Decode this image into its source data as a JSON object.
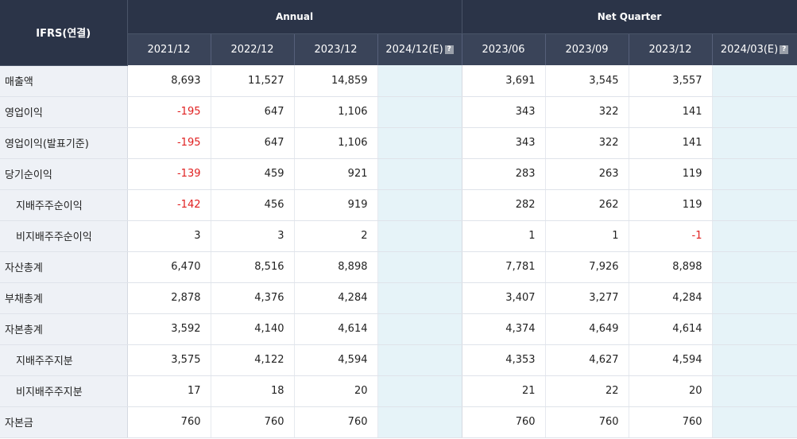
{
  "header": {
    "corner": "IFRS(연결)",
    "annual_label": "Annual",
    "quarter_label": "Net Quarter",
    "estimate_icon": "?",
    "annual_columns": [
      "2021/12",
      "2022/12",
      "2023/12",
      "2024/12(E)"
    ],
    "quarter_columns": [
      "2023/06",
      "2023/09",
      "2023/12",
      "2024/03(E)"
    ]
  },
  "rows": [
    {
      "label": "매출액",
      "indent": false,
      "annual": [
        "8,693",
        "11,527",
        "14,859",
        ""
      ],
      "quarter": [
        "3,691",
        "3,545",
        "3,557",
        ""
      ]
    },
    {
      "label": "영업이익",
      "indent": false,
      "annual": [
        "-195",
        "647",
        "1,106",
        ""
      ],
      "quarter": [
        "343",
        "322",
        "141",
        ""
      ]
    },
    {
      "label": "영업이익(발표기준)",
      "indent": false,
      "annual": [
        "-195",
        "647",
        "1,106",
        ""
      ],
      "quarter": [
        "343",
        "322",
        "141",
        ""
      ]
    },
    {
      "label": "당기순이익",
      "indent": false,
      "annual": [
        "-139",
        "459",
        "921",
        ""
      ],
      "quarter": [
        "283",
        "263",
        "119",
        ""
      ]
    },
    {
      "label": "지배주주순이익",
      "indent": true,
      "annual": [
        "-142",
        "456",
        "919",
        ""
      ],
      "quarter": [
        "282",
        "262",
        "119",
        ""
      ]
    },
    {
      "label": "비지배주주순이익",
      "indent": true,
      "annual": [
        "3",
        "3",
        "2",
        ""
      ],
      "quarter": [
        "1",
        "1",
        "-1",
        ""
      ]
    },
    {
      "label": "자산총계",
      "indent": false,
      "annual": [
        "6,470",
        "8,516",
        "8,898",
        ""
      ],
      "quarter": [
        "7,781",
        "7,926",
        "8,898",
        ""
      ]
    },
    {
      "label": "부채총계",
      "indent": false,
      "annual": [
        "2,878",
        "4,376",
        "4,284",
        ""
      ],
      "quarter": [
        "3,407",
        "3,277",
        "4,284",
        ""
      ]
    },
    {
      "label": "자본총계",
      "indent": false,
      "annual": [
        "3,592",
        "4,140",
        "4,614",
        ""
      ],
      "quarter": [
        "4,374",
        "4,649",
        "4,614",
        ""
      ]
    },
    {
      "label": "지배주주지분",
      "indent": true,
      "annual": [
        "3,575",
        "4,122",
        "4,594",
        ""
      ],
      "quarter": [
        "4,353",
        "4,627",
        "4,594",
        ""
      ]
    },
    {
      "label": "비지배주주지분",
      "indent": true,
      "annual": [
        "17",
        "18",
        "20",
        ""
      ],
      "quarter": [
        "21",
        "22",
        "20",
        ""
      ]
    },
    {
      "label": "자본금",
      "indent": false,
      "annual": [
        "760",
        "760",
        "760",
        ""
      ],
      "quarter": [
        "760",
        "760",
        "760",
        ""
      ]
    }
  ],
  "colors": {
    "header_bg": "#2b3448",
    "negative": "#e02020",
    "estimate_bg": "#e6f3f8",
    "label_bg": "#eef1f6"
  }
}
